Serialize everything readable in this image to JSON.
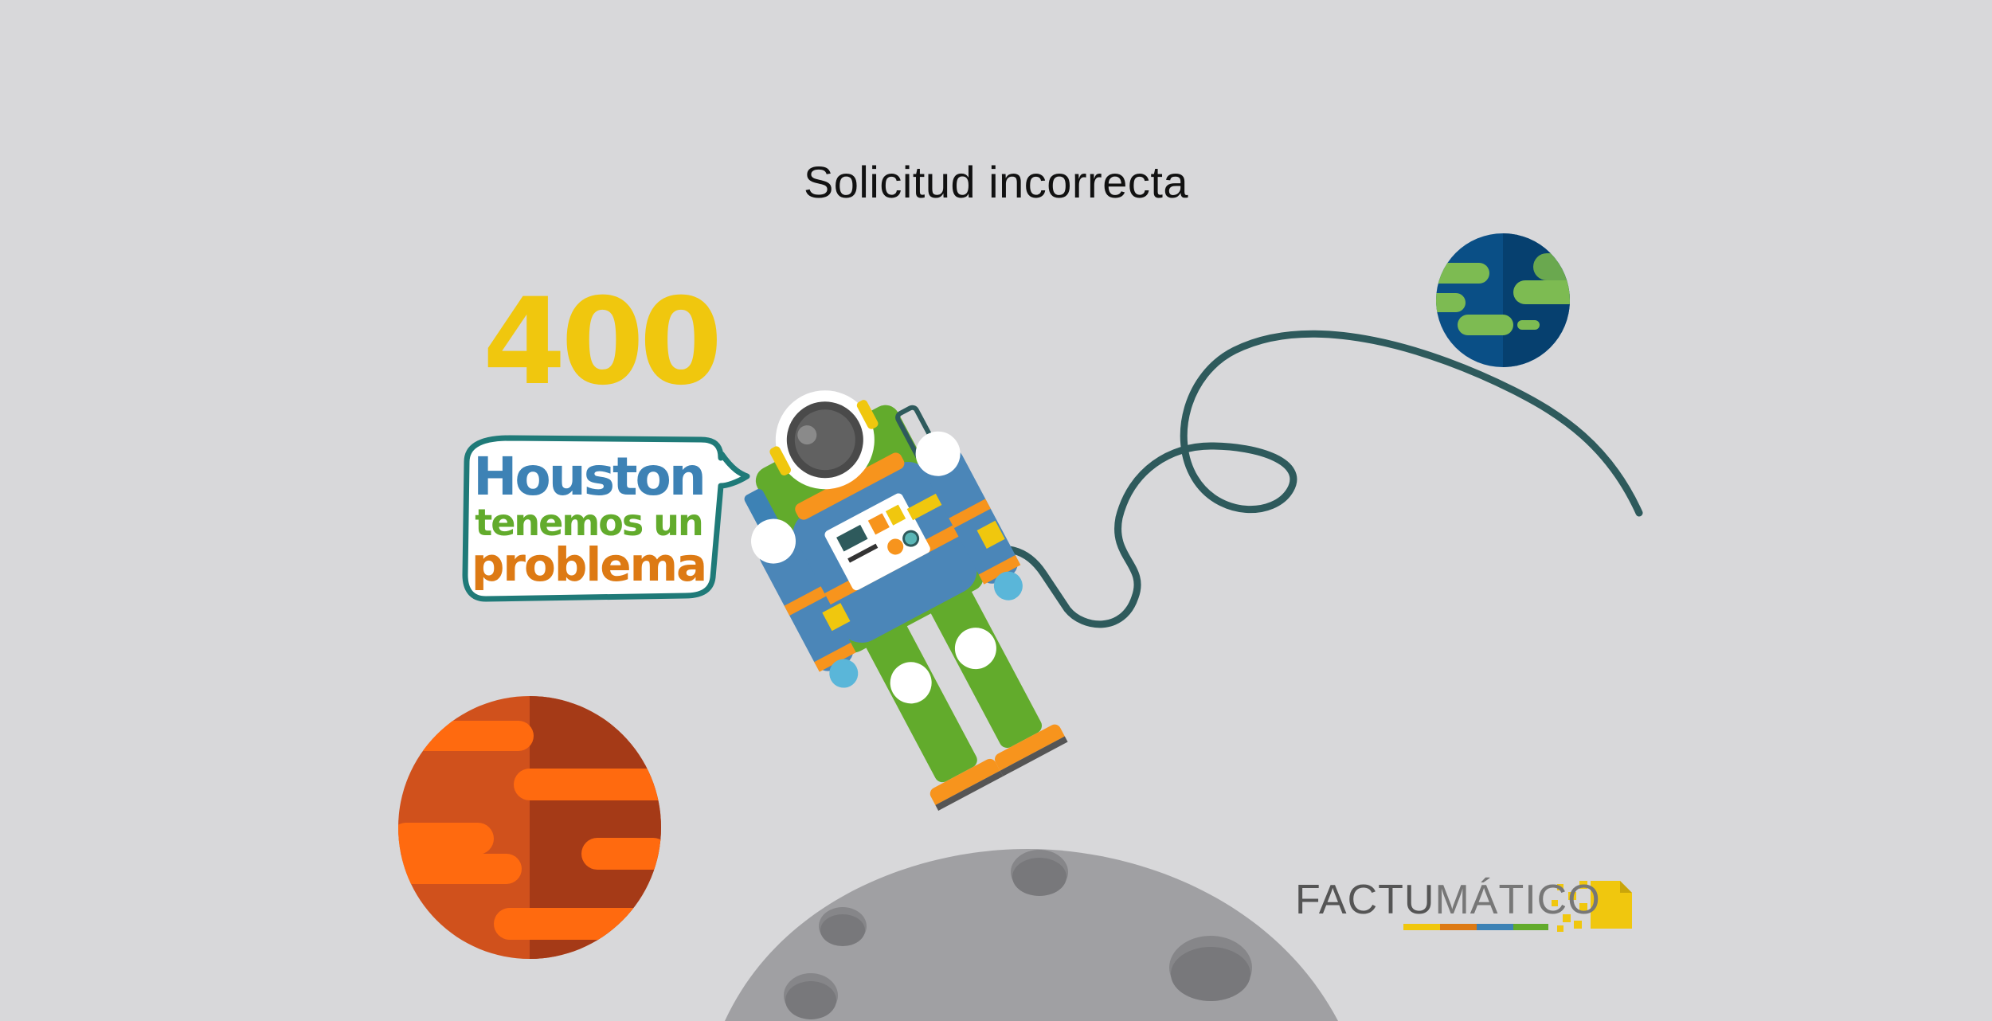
{
  "header": {
    "title": "Solicitud incorrecta"
  },
  "error": {
    "code": "400"
  },
  "bubble": {
    "line1": "Houston",
    "line2": "tenemos un",
    "line3": "problema"
  },
  "logo": {
    "part1": "FACTU",
    "part2": "MÁTICO"
  },
  "colors": {
    "background": "#d8d8da",
    "code": "#f0c70e",
    "houston": "#3d82b5",
    "tenemos": "#62ab2c",
    "problema": "#dd7a14",
    "tether": "#2e5a5c"
  },
  "icons": [
    "planet-earth-icon",
    "planet-mars-icon",
    "moon-icon",
    "astronaut-icon",
    "tether-icon",
    "speech-bubble-icon",
    "factumatico-logo-icon"
  ]
}
